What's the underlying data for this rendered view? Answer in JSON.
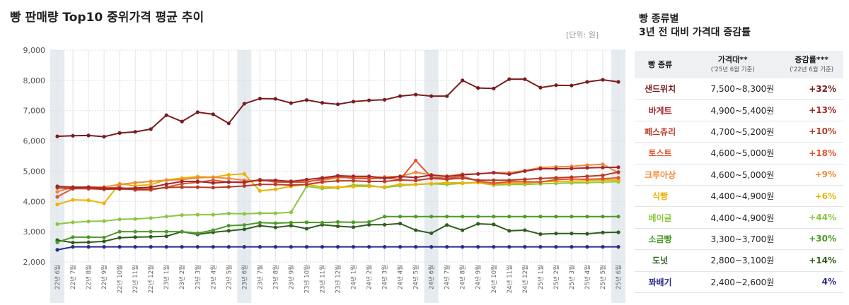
{
  "title": "빵 판매량 Top10 중위가격 평균 추이",
  "unit_label": "[단위: 원]",
  "side": {
    "title_line1": "빵 종류별",
    "title_line2": "3년 전 대비 가격대 증감률",
    "headers": {
      "type": "빵 종류",
      "range": "가격대**",
      "range_sub": "('25년 6월 기준)",
      "growth": "증감률***",
      "growth_sub": "('22년 6월 기준)"
    },
    "rows": [
      {
        "name": "샌드위치",
        "range": "7,500~8,300원",
        "growth": "+32%",
        "color": "#7a1c1c"
      },
      {
        "name": "바게트",
        "range": "4,900~5,400원",
        "growth": "+13%",
        "color": "#a4262c"
      },
      {
        "name": "페스츄리",
        "range": "4,700~5,200원",
        "growth": "+10%",
        "color": "#b83b28"
      },
      {
        "name": "토스트",
        "range": "4,600~5,000원",
        "growth": "+18%",
        "color": "#e0542e"
      },
      {
        "name": "크루아상",
        "range": "4,600~5,000원",
        "growth": "+9%",
        "color": "#f08a3a"
      },
      {
        "name": "식빵",
        "range": "4,400~4,900원",
        "growth": "+6%",
        "color": "#e9b400"
      },
      {
        "name": "베이글",
        "range": "4,400~4,900원",
        "growth": "+44%",
        "color": "#8dc63f"
      },
      {
        "name": "소금빵",
        "range": "3,300~3,700원",
        "growth": "+30%",
        "color": "#4c9a2a"
      },
      {
        "name": "도넛",
        "range": "2,800~3,100원",
        "growth": "+14%",
        "color": "#2e5e1e"
      },
      {
        "name": "꽈배기",
        "range": "2,400~2,600원",
        "growth": "4%",
        "color": "#2b2b8c"
      }
    ]
  },
  "chart_data": {
    "type": "line",
    "title": "빵 판매량 Top10 중위가격 평균 추이",
    "xlabel": "",
    "ylabel": "[단위: 원]",
    "ylim": [
      2000,
      9000
    ],
    "yticks": [
      2000,
      3000,
      4000,
      5000,
      6000,
      7000,
      8000,
      9000
    ],
    "ytick_labels": [
      "2,000",
      "3,000",
      "4,000",
      "5,000",
      "6,000",
      "7,000",
      "8,000",
      "9,000"
    ],
    "grid": true,
    "highlight_categories": [
      "22년 6월",
      "23년 6월",
      "24년 6월",
      "25년 6월"
    ],
    "categories": [
      "22년 6월",
      "22년 7월",
      "22년 8월",
      "22년 9월",
      "22년 10월",
      "22년 11월",
      "22년 12월",
      "23년 1월",
      "23년 2월",
      "23년 3월",
      "23년 4월",
      "23년 5월",
      "23년 6월",
      "23년 7월",
      "23년 8월",
      "23년 9월",
      "23년 10월",
      "23년 11월",
      "23년 12월",
      "24년 1월",
      "24년 2월",
      "24년 3월",
      "24년 4월",
      "24년 5월",
      "24년 6월",
      "24년 7월",
      "24년 8월",
      "24년 9월",
      "24년 10월",
      "24년 11월",
      "24년 12월",
      "25년 1월",
      "25년 2월",
      "25년 3월",
      "25년 4월",
      "25년 5월",
      "25년 6월"
    ],
    "series": [
      {
        "name": "샌드위치",
        "color": "#7a1c1c",
        "values": [
          6150,
          6170,
          6180,
          6140,
          6260,
          6300,
          6390,
          6850,
          6640,
          6950,
          6880,
          6580,
          7230,
          7400,
          7390,
          7250,
          7350,
          7260,
          7210,
          7300,
          7340,
          7360,
          7480,
          7530,
          7480,
          7480,
          8000,
          7750,
          7730,
          8040,
          8040,
          7760,
          7840,
          7830,
          7950,
          8020,
          7950
        ]
      },
      {
        "name": "바게트",
        "color": "#a4262c",
        "values": [
          4500,
          4470,
          4470,
          4440,
          4430,
          4440,
          4470,
          4570,
          4660,
          4660,
          4610,
          4640,
          4640,
          4700,
          4700,
          4660,
          4720,
          4780,
          4850,
          4830,
          4830,
          4770,
          4820,
          4790,
          4870,
          4820,
          4880,
          4910,
          4950,
          4900,
          5000,
          5080,
          5080,
          5090,
          5110,
          5120,
          5130
        ]
      },
      {
        "name": "페스츄리",
        "color": "#b83b28",
        "values": [
          4450,
          4420,
          4420,
          4400,
          4410,
          4400,
          4410,
          4460,
          4470,
          4470,
          4460,
          4480,
          4510,
          4560,
          4560,
          4540,
          4560,
          4640,
          4680,
          4680,
          4660,
          4660,
          4710,
          4690,
          4760,
          4730,
          4770,
          4700,
          4700,
          4700,
          4730,
          4760,
          4780,
          4800,
          4830,
          4860,
          4970
        ]
      },
      {
        "name": "토스트",
        "color": "#e0542e",
        "values": [
          4150,
          4430,
          4440,
          4440,
          4460,
          4380,
          4380,
          4470,
          4580,
          4630,
          4700,
          4640,
          4620,
          4720,
          4640,
          4630,
          4640,
          4740,
          4820,
          4760,
          4750,
          4770,
          4730,
          5350,
          4800,
          4760,
          4830,
          4670,
          4600,
          4650,
          4650,
          4640,
          4720,
          4740,
          4730,
          4750,
          4780
        ]
      },
      {
        "name": "크루아상",
        "color": "#f08a3a",
        "values": [
          4320,
          4470,
          4480,
          4480,
          4560,
          4620,
          4660,
          4700,
          4720,
          4780,
          4800,
          4760,
          4700,
          4680,
          4670,
          4670,
          4670,
          4700,
          4780,
          4800,
          4790,
          4810,
          4830,
          4960,
          4880,
          4840,
          4900,
          4910,
          4950,
          4950,
          5020,
          5120,
          5140,
          5160,
          5200,
          5230,
          4950
        ]
      },
      {
        "name": "식빵",
        "color": "#e9b400",
        "values": [
          3900,
          4050,
          4040,
          3940,
          4590,
          4510,
          4560,
          4710,
          4770,
          4820,
          4800,
          4880,
          4910,
          4350,
          4400,
          4500,
          4560,
          4480,
          4470,
          4490,
          4500,
          4480,
          4560,
          4560,
          4590,
          4620,
          4610,
          4630,
          4570,
          4600,
          4600,
          4650,
          4660,
          4670,
          4680,
          4710,
          4700
        ]
      },
      {
        "name": "베이글",
        "color": "#8dc63f",
        "values": [
          3250,
          3310,
          3340,
          3350,
          3410,
          3420,
          3450,
          3500,
          3550,
          3560,
          3560,
          3600,
          3590,
          3610,
          3610,
          3640,
          4500,
          4430,
          4450,
          4540,
          4530,
          4460,
          4520,
          4560,
          4580,
          4560,
          4600,
          4620,
          4540,
          4560,
          4560,
          4580,
          4600,
          4610,
          4620,
          4640,
          4650
        ]
      },
      {
        "name": "소금빵",
        "color": "#4c9a2a",
        "values": [
          2650,
          2820,
          2820,
          2810,
          3000,
          3000,
          3000,
          3000,
          3000,
          2950,
          3050,
          3200,
          3220,
          3300,
          3280,
          3300,
          3310,
          3300,
          3320,
          3310,
          3320,
          3500,
          3500,
          3500,
          3500,
          3500,
          3500,
          3500,
          3500,
          3500,
          3500,
          3500,
          3500,
          3500,
          3500,
          3500,
          3500
        ]
      },
      {
        "name": "도넛",
        "color": "#2e5e1e",
        "values": [
          2720,
          2640,
          2650,
          2680,
          2800,
          2820,
          2830,
          2850,
          3000,
          2910,
          2980,
          3030,
          3080,
          3200,
          3140,
          3200,
          3100,
          3230,
          3180,
          3150,
          3230,
          3230,
          3270,
          3050,
          2950,
          3220,
          3050,
          3260,
          3240,
          3030,
          3050,
          2920,
          2940,
          2940,
          2930,
          2970,
          2980
        ]
      },
      {
        "name": "꽈배기",
        "color": "#2b2b8c",
        "values": [
          2400,
          2500,
          2500,
          2500,
          2500,
          2500,
          2500,
          2500,
          2500,
          2500,
          2500,
          2500,
          2500,
          2500,
          2500,
          2500,
          2500,
          2500,
          2500,
          2500,
          2500,
          2500,
          2500,
          2500,
          2500,
          2500,
          2500,
          2500,
          2500,
          2500,
          2500,
          2500,
          2500,
          2500,
          2500,
          2500,
          2500
        ]
      }
    ]
  }
}
